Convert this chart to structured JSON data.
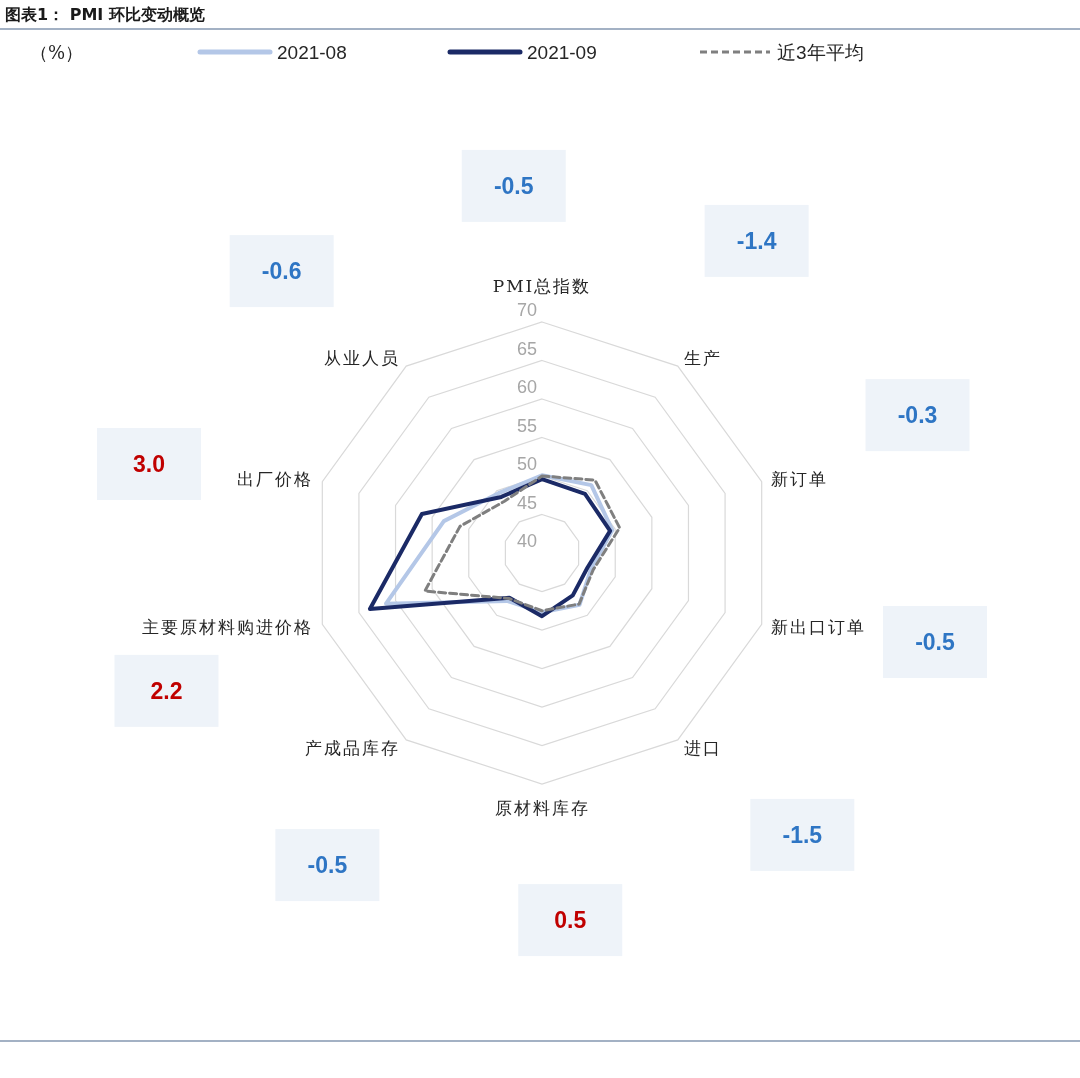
{
  "chart_data": {
    "type": "radar",
    "title": "图表1： PMI 环比变动概览",
    "ylabel": "（%）",
    "categories": [
      "PMI总指数",
      "生产",
      "新订单",
      "新出口订单",
      "进口",
      "原材料库存",
      "产成品库存",
      "主要原材料购进价格",
      "出厂价格",
      "从业人员"
    ],
    "series": [
      {
        "name": "2021-08",
        "color": "#b4c7e7",
        "values": [
          50.1,
          50.9,
          49.6,
          46.7,
          48.3,
          47.7,
          47.7,
          61.3,
          53.4,
          49.6
        ]
      },
      {
        "name": "2021-09",
        "color": "#1b2a66",
        "values": [
          49.6,
          49.5,
          49.3,
          46.2,
          46.8,
          48.2,
          47.2,
          63.5,
          56.4,
          49.0
        ]
      },
      {
        "name": "近3年平均",
        "color": "#7f7f7f",
        "line_style": "dashed",
        "values": [
          50.0,
          51.7,
          50.6,
          47.0,
          48.2,
          47.5,
          47.3,
          56.0,
          51.2,
          48.3
        ]
      }
    ],
    "ylim": [
      40,
      70
    ],
    "yticks": [
      40,
      45,
      50,
      55,
      60,
      65,
      70
    ],
    "grid": true,
    "legend": "top",
    "annotations": [
      {
        "text": "-0.5",
        "x": "PMI总指数"
      },
      {
        "text": "-1.4",
        "x": "生产"
      },
      {
        "text": "-0.3",
        "x": "新订单"
      },
      {
        "text": "-0.5",
        "x": "新出口订单"
      },
      {
        "text": "-1.5",
        "x": "进口"
      },
      {
        "text": "0.5",
        "x": "原材料库存"
      },
      {
        "text": "-0.5",
        "x": "产成品库存"
      },
      {
        "text": "2.2",
        "x": "主要原材料购进价格"
      },
      {
        "text": "3.0",
        "x": "出厂价格"
      },
      {
        "text": "-0.6",
        "x": "从业人员"
      }
    ]
  }
}
